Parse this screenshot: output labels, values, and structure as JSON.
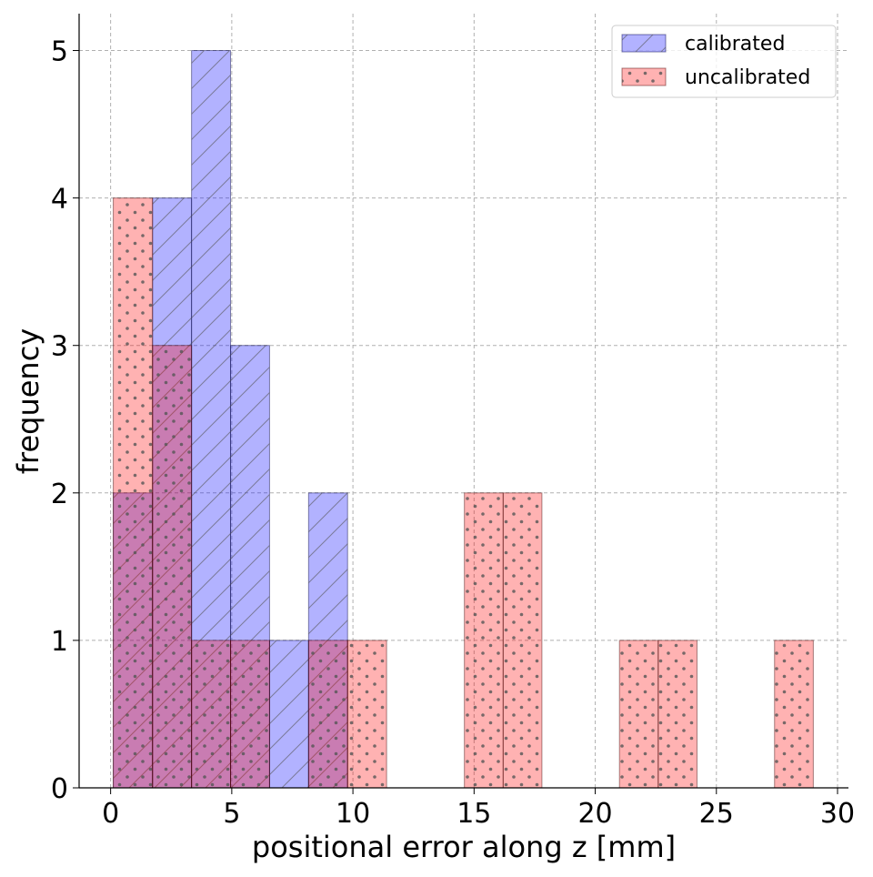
{
  "chart_data": {
    "type": "bar",
    "subtype": "histogram",
    "title": "",
    "xlabel": "positional error along z [mm]",
    "ylabel": "frequency",
    "xlim": [
      -1.3,
      30.45
    ],
    "ylim": [
      0,
      5.25
    ],
    "xticks": [
      0,
      5,
      10,
      15,
      20,
      25,
      30
    ],
    "yticks": [
      0,
      1,
      2,
      3,
      4,
      5
    ],
    "grid": true,
    "legend_position": "top-right",
    "bin_edges": [
      0.11,
      1.73,
      3.34,
      4.95,
      6.56,
      8.17,
      9.78,
      11.39,
      13.0,
      14.6,
      16.2,
      17.8,
      19.4,
      21.0,
      22.6,
      24.2,
      25.8,
      27.4,
      29.0
    ],
    "series": [
      {
        "name": "calibrated",
        "color": "#0000ff",
        "alpha": 0.3,
        "hatch": "/",
        "values": [
          2,
          4,
          5,
          3,
          1,
          2,
          0,
          0,
          0,
          0,
          0,
          0,
          0,
          0,
          0,
          0,
          0,
          0
        ]
      },
      {
        "name": "uncalibrated",
        "color": "#ff0000",
        "alpha": 0.3,
        "hatch": ".",
        "values": [
          4,
          3,
          1,
          1,
          0,
          1,
          1,
          0,
          0,
          2,
          2,
          0,
          0,
          1,
          1,
          0,
          0,
          1
        ]
      }
    ]
  }
}
